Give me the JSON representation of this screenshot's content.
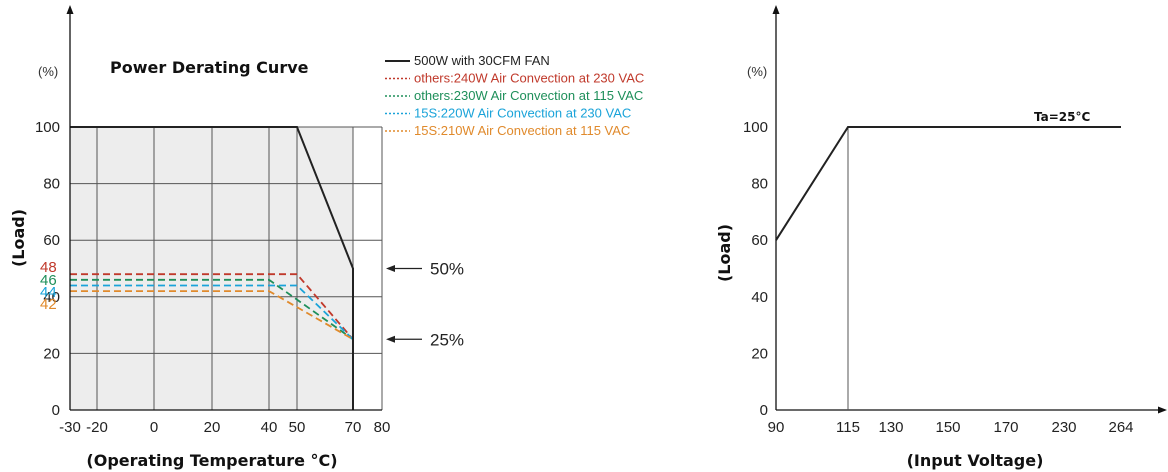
{
  "chart_data": [
    {
      "type": "line",
      "title": "Power Derating Curve",
      "xlabel": "(Operating Temperature °C)",
      "ylabel": "(Load)",
      "y_unit": "(%)",
      "x_ticks": [
        "-30",
        "-20",
        "0",
        "20",
        "40",
        "50",
        "70",
        "80"
      ],
      "x_tick_values": [
        -30,
        -20,
        0,
        20,
        40,
        50,
        70,
        80
      ],
      "y_ticks": [
        "0",
        "20",
        "40",
        "60",
        "80",
        "100"
      ],
      "y_tick_values": [
        0,
        20,
        40,
        60,
        80,
        100
      ],
      "xlim": [
        -30,
        80
      ],
      "ylim": [
        0,
        100
      ],
      "grid": true,
      "legend_position": "top-right",
      "series": [
        {
          "name": "500W with 30CFM FAN",
          "color": "#222222",
          "style": "solid",
          "x": [
            -30,
            50,
            70,
            70
          ],
          "y": [
            100,
            100,
            50,
            0
          ]
        },
        {
          "name": "others:240W Air Convection at 230 VAC",
          "color": "#c0392b",
          "style": "dashed",
          "x": [
            -30,
            50,
            70,
            70
          ],
          "y": [
            48,
            48,
            25,
            0
          ]
        },
        {
          "name": "others:230W Air Convection at 115 VAC",
          "color": "#1e8f5a",
          "style": "dashed",
          "x": [
            -30,
            40,
            70,
            70
          ],
          "y": [
            46,
            46,
            25,
            0
          ]
        },
        {
          "name": "15S:220W Air Convection at 230 VAC",
          "color": "#1aa3d9",
          "style": "dashed",
          "x": [
            -30,
            50,
            70,
            70
          ],
          "y": [
            44,
            44,
            25,
            0
          ]
        },
        {
          "name": "15S:210W Air Convection at 115 VAC",
          "color": "#e08a2c",
          "style": "dashed",
          "x": [
            -30,
            40,
            70,
            70
          ],
          "y": [
            42,
            42,
            25,
            0
          ]
        }
      ],
      "side_labels": [
        {
          "text": "48",
          "color": "#c0392b",
          "y": 48
        },
        {
          "text": "46",
          "color": "#1e8f5a",
          "y": 46
        },
        {
          "text": "44",
          "color": "#1aa3d9",
          "y": 44
        },
        {
          "text": "42",
          "color": "#e08a2c",
          "y": 42
        }
      ],
      "annotations": [
        {
          "text": "50%",
          "y": 50
        },
        {
          "text": "25%",
          "y": 25
        }
      ],
      "shaded_region": {
        "x": [
          -30,
          70
        ],
        "y": [
          0,
          100
        ],
        "color": "#ededed"
      }
    },
    {
      "type": "line",
      "title": "",
      "xlabel": "(Input Voltage)",
      "ylabel": "(Load)",
      "y_unit": "(%)",
      "x_ticks": [
        "90",
        "115",
        "130",
        "150",
        "170",
        "230",
        "264"
      ],
      "y_ticks": [
        "0",
        "20",
        "40",
        "60",
        "80",
        "100"
      ],
      "y_tick_values": [
        0,
        20,
        40,
        60,
        80,
        100
      ],
      "ylim": [
        0,
        100
      ],
      "grid": false,
      "series": [
        {
          "color": "#222222",
          "style": "solid",
          "x": [
            "90",
            "115",
            "264"
          ],
          "y": [
            60,
            100,
            100
          ]
        }
      ],
      "annotations": [
        {
          "text": "Ta=25°C",
          "near": "100"
        }
      ],
      "reference_line_x": "115"
    }
  ]
}
